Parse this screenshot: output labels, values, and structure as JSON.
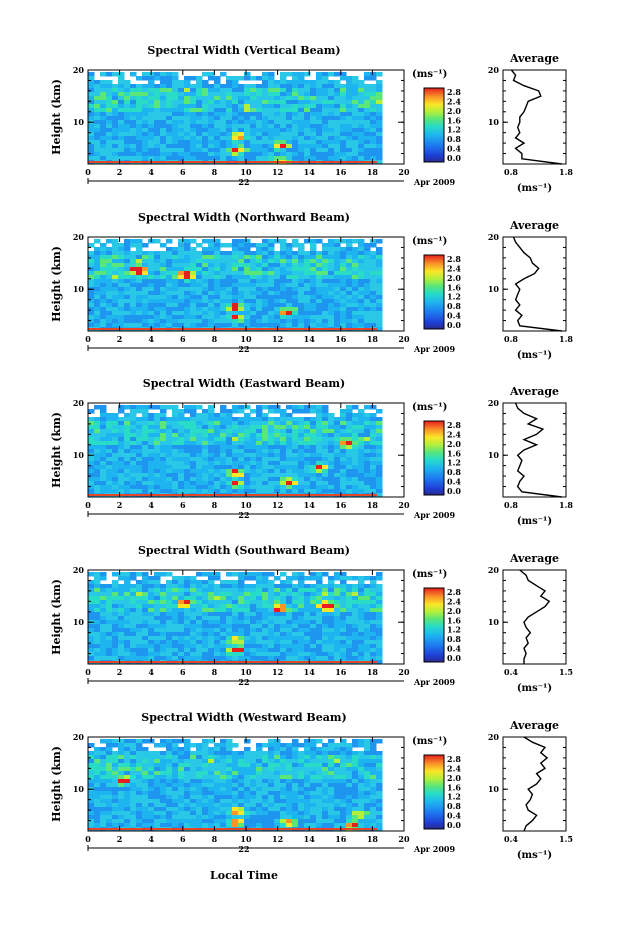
{
  "chart_data": [
    {
      "type": "heatmap",
      "title": "Spectral Width (Vertical Beam)",
      "ylabel": "Height (km)",
      "x_ticks": [
        "0",
        "2",
        "4",
        "6",
        "8",
        "10",
        "12",
        "14",
        "16",
        "18",
        "20"
      ],
      "xlim": [
        0,
        20
      ],
      "ylim": [
        2,
        20
      ],
      "y_ticks": [
        "10",
        "20"
      ],
      "date_day": "22",
      "date_label": "Apr 2009",
      "colorbar_unit": "(ms⁻¹)",
      "colorbar_ticks": [
        "2.8",
        "2.4",
        "2.0",
        "1.6",
        "1.2",
        "0.8",
        "0.4",
        "0.0"
      ],
      "hotspots": [
        [
          9.3,
          5
        ],
        [
          9.3,
          7.5
        ],
        [
          12,
          3
        ],
        [
          12,
          6
        ]
      ],
      "avg": {
        "title": "Average",
        "xlabel": "(ms⁻¹)",
        "x_ticks": [
          "0.8",
          "1.8"
        ],
        "xlim": [
          0.5,
          2.0
        ],
        "y_ticks": [
          "10",
          "20"
        ],
        "heights": [
          2,
          3,
          4,
          5,
          6,
          7,
          8,
          9,
          10,
          11,
          12,
          13,
          14,
          15,
          16,
          17,
          18,
          19,
          20
        ],
        "values": [
          1.9,
          0.95,
          0.95,
          0.8,
          1.0,
          0.8,
          0.9,
          0.85,
          0.9,
          0.9,
          1.0,
          1.05,
          1.1,
          1.4,
          1.35,
          1.0,
          0.75,
          0.8,
          0.7
        ]
      }
    },
    {
      "type": "heatmap",
      "title": "Spectral Width (Northward Beam)",
      "ylabel": "Height (km)",
      "x_ticks": [
        "0",
        "2",
        "4",
        "6",
        "8",
        "10",
        "12",
        "14",
        "16",
        "18",
        "20"
      ],
      "xlim": [
        0,
        20
      ],
      "ylim": [
        2,
        20
      ],
      "y_ticks": [
        "10",
        "20"
      ],
      "date_day": "22",
      "date_label": "Apr 2009",
      "colorbar_unit": "(ms⁻¹)",
      "colorbar_ticks": [
        "2.8",
        "2.4",
        "2.0",
        "1.6",
        "1.2",
        "0.8",
        "0.4",
        "0.0"
      ],
      "hotspots": [
        [
          9.2,
          5
        ],
        [
          9.2,
          7
        ],
        [
          12.5,
          6
        ],
        [
          6,
          13
        ],
        [
          3,
          14
        ]
      ],
      "avg": {
        "title": "Average",
        "xlabel": "(ms⁻¹)",
        "x_ticks": [
          "0.8",
          "1.8"
        ],
        "xlim": [
          0.5,
          2.0
        ],
        "y_ticks": [
          "10",
          "20"
        ],
        "heights": [
          2,
          3,
          4,
          5,
          6,
          7,
          8,
          9,
          10,
          11,
          12,
          13,
          14,
          15,
          16,
          17,
          18,
          19,
          20
        ],
        "values": [
          1.9,
          0.9,
          0.85,
          0.95,
          0.8,
          0.9,
          0.8,
          0.85,
          0.9,
          0.8,
          1.0,
          1.25,
          1.35,
          1.2,
          1.15,
          1.0,
          0.9,
          0.8,
          0.75
        ]
      }
    },
    {
      "type": "heatmap",
      "title": "Spectral Width (Eastward Beam)",
      "ylabel": "Height (km)",
      "x_ticks": [
        "0",
        "2",
        "4",
        "6",
        "8",
        "10",
        "12",
        "14",
        "16",
        "18",
        "20"
      ],
      "xlim": [
        0,
        20
      ],
      "ylim": [
        2,
        20
      ],
      "y_ticks": [
        "10",
        "20"
      ],
      "date_day": "22",
      "date_label": "Apr 2009",
      "colorbar_unit": "(ms⁻¹)",
      "colorbar_ticks": [
        "2.8",
        "2.4",
        "2.0",
        "1.6",
        "1.2",
        "0.8",
        "0.4",
        "0.0"
      ],
      "hotspots": [
        [
          9.2,
          5
        ],
        [
          9.2,
          7
        ],
        [
          12.5,
          5
        ],
        [
          16.3,
          12.5
        ],
        [
          14.5,
          8
        ]
      ],
      "avg": {
        "title": "Average",
        "xlabel": "(ms⁻¹)",
        "x_ticks": [
          "0.8",
          "1.8"
        ],
        "xlim": [
          0.5,
          2.0
        ],
        "y_ticks": [
          "10",
          "20"
        ],
        "heights": [
          2,
          3,
          4,
          5,
          6,
          7,
          8,
          9,
          10,
          11,
          12,
          13,
          14,
          15,
          16,
          17,
          18,
          19,
          20
        ],
        "values": [
          1.9,
          0.95,
          0.85,
          0.9,
          1.0,
          0.85,
          0.9,
          0.95,
          0.85,
          1.0,
          1.3,
          1.0,
          1.3,
          1.45,
          1.1,
          1.3,
          1.0,
          0.85,
          0.8
        ]
      }
    },
    {
      "type": "heatmap",
      "title": "Spectral Width (Southward Beam)",
      "ylabel": "Height (km)",
      "x_ticks": [
        "0",
        "2",
        "4",
        "6",
        "8",
        "10",
        "12",
        "14",
        "16",
        "18",
        "20"
      ],
      "xlim": [
        0,
        20
      ],
      "ylim": [
        2,
        20
      ],
      "y_ticks": [
        "10",
        "20"
      ],
      "date_day": "22",
      "date_label": "Apr 2009",
      "colorbar_unit": "(ms⁻¹)",
      "colorbar_ticks": [
        "2.8",
        "2.4",
        "2.0",
        "1.6",
        "1.2",
        "0.8",
        "0.4",
        "0.0"
      ],
      "hotspots": [
        [
          9.2,
          5
        ],
        [
          9.2,
          7
        ],
        [
          12,
          13
        ],
        [
          6,
          14
        ],
        [
          15,
          13.5
        ]
      ],
      "avg": {
        "title": "Average",
        "xlabel": "(ms⁻¹)",
        "x_ticks": [
          "0.4",
          "1.5"
        ],
        "xlim": [
          0.2,
          1.7
        ],
        "y_ticks": [
          "10",
          "20"
        ],
        "heights": [
          2,
          3,
          4,
          5,
          6,
          7,
          8,
          9,
          10,
          11,
          12,
          13,
          14,
          15,
          16,
          17,
          18,
          19,
          20
        ],
        "values": [
          0.7,
          0.7,
          0.75,
          0.7,
          0.8,
          0.75,
          0.85,
          0.75,
          0.7,
          0.8,
          1.0,
          1.2,
          1.3,
          1.1,
          1.2,
          1.0,
          0.8,
          0.75,
          0.6
        ]
      }
    },
    {
      "type": "heatmap",
      "title": "Spectral Width (Westward Beam)",
      "ylabel": "Height (km)",
      "x_ticks": [
        "0",
        "2",
        "4",
        "6",
        "8",
        "10",
        "12",
        "14",
        "16",
        "18",
        "20"
      ],
      "xlim": [
        0,
        20
      ],
      "ylim": [
        2,
        20
      ],
      "y_ticks": [
        "10",
        "20"
      ],
      "date_day": "22",
      "date_label": "Apr 2009",
      "colorbar_unit": "(ms⁻¹)",
      "colorbar_ticks": [
        "2.8",
        "2.4",
        "2.0",
        "1.6",
        "1.2",
        "0.8",
        "0.4",
        "0.0"
      ],
      "hotspots": [
        [
          9.2,
          4
        ],
        [
          9.2,
          6
        ],
        [
          12.5,
          4
        ],
        [
          16.5,
          3.5
        ],
        [
          17,
          5.5
        ],
        [
          2,
          12
        ]
      ],
      "avg": {
        "title": "Average",
        "xlabel": "(ms⁻¹)",
        "x_ticks": [
          "0.4",
          "1.5"
        ],
        "xlim": [
          0.2,
          1.7
        ],
        "y_ticks": [
          "10",
          "20"
        ],
        "heights": [
          2,
          3,
          4,
          5,
          6,
          7,
          8,
          9,
          10,
          11,
          12,
          13,
          14,
          15,
          16,
          17,
          18,
          19,
          20
        ],
        "values": [
          0.7,
          0.75,
          0.9,
          1.0,
          0.8,
          0.75,
          0.85,
          0.9,
          0.8,
          1.0,
          1.1,
          1.0,
          1.2,
          1.1,
          1.25,
          1.1,
          1.2,
          0.9,
          0.7
        ]
      }
    }
  ],
  "figure": {
    "xlabel": "Local Time"
  }
}
